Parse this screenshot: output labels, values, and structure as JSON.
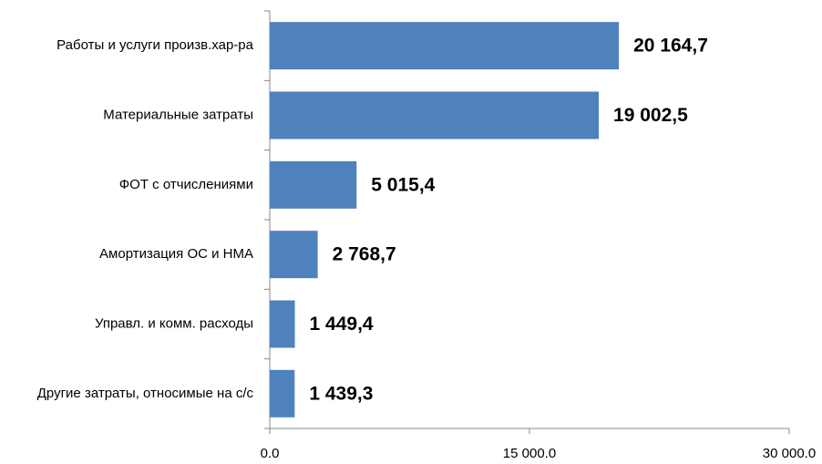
{
  "chart_data": {
    "type": "barh",
    "categories": [
      "Работы и услуги произв.хар-ра",
      "Материальные затраты",
      "ФОТ с отчислениями",
      "Амортизация ОС и НМА",
      "Управл. и комм. расходы",
      "Другие затраты, относимые на с/с"
    ],
    "values": [
      20164.7,
      19002.5,
      5015.4,
      2768.7,
      1449.4,
      1439.3
    ],
    "value_labels": [
      "20 164,7",
      "19 002,5",
      "5 015,4",
      "2 768,7",
      "1 449,4",
      "1 439,3"
    ],
    "color": "#4f81bd",
    "xlim": [
      0,
      30000
    ],
    "xticks": [
      {
        "value": 0,
        "label": "0.0"
      },
      {
        "value": 15000,
        "label": "15 000.0"
      },
      {
        "value": 30000,
        "label": "30 000.0"
      }
    ],
    "grid": false
  }
}
